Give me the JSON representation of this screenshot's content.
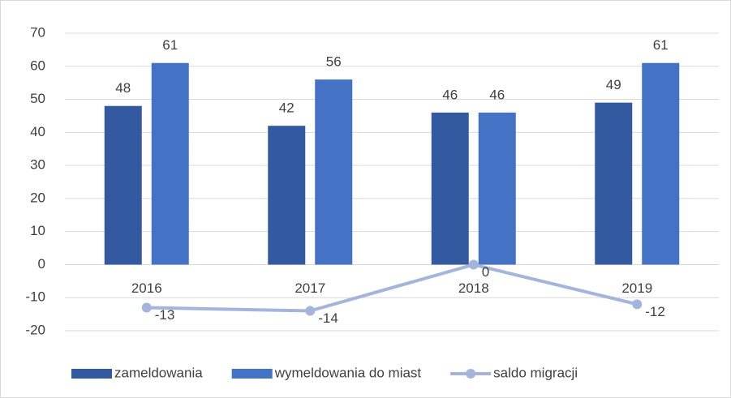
{
  "chart_data": {
    "type": "bar",
    "categories": [
      "2016",
      "2017",
      "2018",
      "2019"
    ],
    "series": [
      {
        "name": "zameldowania",
        "color": "#335aa1",
        "values": [
          48,
          42,
          46,
          49
        ]
      },
      {
        "name": "wymeldowania do miast",
        "color": "#4472c4",
        "values": [
          61,
          56,
          46,
          61
        ]
      },
      {
        "name": "saldo migracji",
        "type": "line",
        "color": "#a5b4db",
        "values": [
          -13,
          -14,
          0,
          -12
        ]
      }
    ],
    "ylim": [
      -20,
      70
    ],
    "yticks": [
      -20,
      -10,
      0,
      10,
      20,
      30,
      40,
      50,
      60,
      70
    ],
    "grid": true,
    "legend": "bottom"
  }
}
